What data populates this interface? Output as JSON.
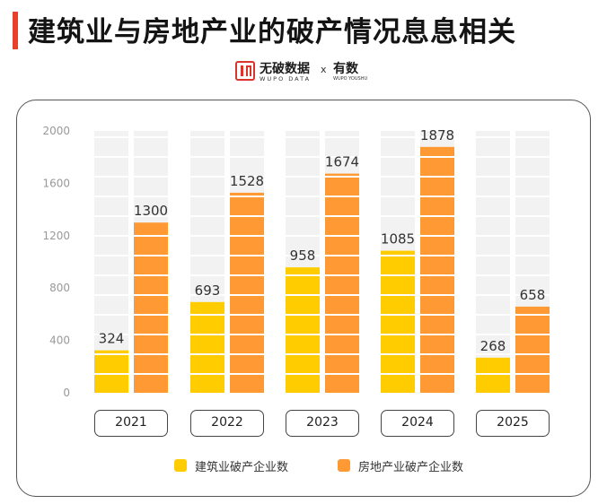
{
  "header": {
    "title": "建筑业与房地产业的破产情况息息相关",
    "brand_name": "无破数据",
    "brand_sub": "WUPO DATA",
    "brand_x": "x",
    "brand2_name": "有数",
    "brand2_sub": "WUPO YOUSHU"
  },
  "colors": {
    "accent": "#e8402a",
    "construction": "#ffcc00",
    "real_estate": "#ff9933",
    "background_stripe": "#f2f2f2"
  },
  "chart_data": {
    "type": "bar",
    "categories": [
      "2021",
      "2022",
      "2023",
      "2024",
      "2025"
    ],
    "series": [
      {
        "name": "建筑业破产企业数",
        "values": [
          324,
          693,
          958,
          1085,
          268
        ]
      },
      {
        "name": "房地产业破产企业数",
        "values": [
          1300,
          1528,
          1674,
          1878,
          658
        ]
      }
    ],
    "y_ticks": [
      0,
      400,
      800,
      1200,
      1600,
      2000
    ],
    "ylim": [
      0,
      2000
    ],
    "legend_position": "bottom",
    "grid": false
  }
}
